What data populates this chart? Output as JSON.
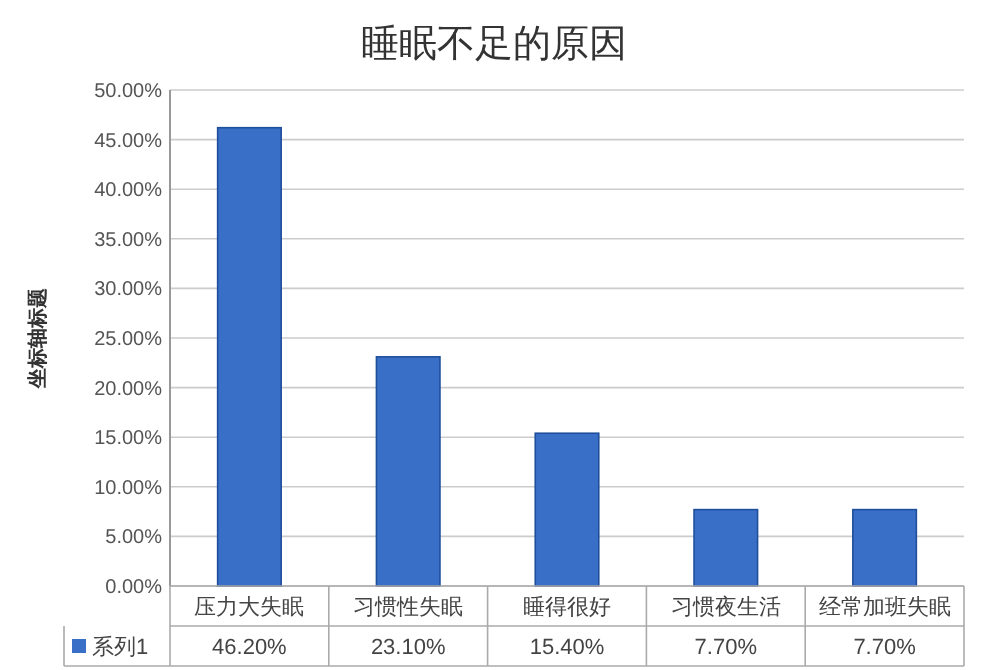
{
  "chart_data": {
    "type": "bar",
    "title": "睡眠不足的原因",
    "ylabel": "坐标轴标题",
    "categories": [
      "压力大失眠",
      "习惯性失眠",
      "睡得很好",
      "习惯夜生活",
      "经常加班失眠"
    ],
    "series": [
      {
        "name": "系列1",
        "color": "#3a6fc8",
        "values": [
          46.2,
          23.1,
          15.4,
          7.7,
          7.7
        ],
        "value_labels": [
          "46.20%",
          "23.10%",
          "15.40%",
          "7.70%",
          "7.70%"
        ]
      }
    ],
    "ylim": [
      0,
      50
    ],
    "yticks": [
      {
        "value": 0,
        "label": "0.00%"
      },
      {
        "value": 5,
        "label": "5.00%"
      },
      {
        "value": 10,
        "label": "10.00%"
      },
      {
        "value": 15,
        "label": "15.00%"
      },
      {
        "value": 20,
        "label": "20.00%"
      },
      {
        "value": 25,
        "label": "25.00%"
      },
      {
        "value": 30,
        "label": "30.00%"
      },
      {
        "value": 35,
        "label": "35.00%"
      },
      {
        "value": 40,
        "label": "40.00%"
      },
      {
        "value": 45,
        "label": "45.00%"
      },
      {
        "value": 50,
        "label": "50.00%"
      }
    ],
    "grid": "y",
    "legend": "bottom left"
  }
}
